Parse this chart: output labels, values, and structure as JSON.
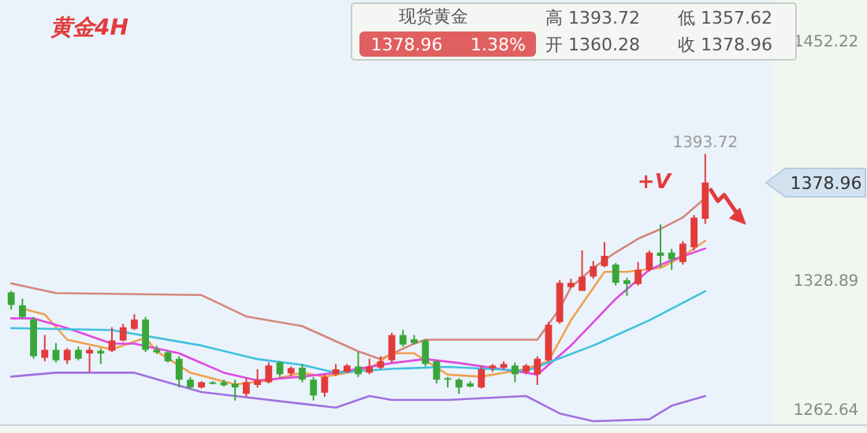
{
  "chart_data": {
    "type": "candlestick",
    "title": "黄金4H",
    "categories": [
      null,
      null,
      null,
      null,
      null,
      null,
      null,
      null,
      null,
      null,
      null,
      null,
      null,
      null,
      null,
      null,
      null,
      null,
      null,
      null,
      null,
      null,
      null,
      null,
      null,
      null,
      null,
      null,
      null,
      null,
      null,
      null,
      null,
      null,
      null,
      null,
      null,
      null,
      null,
      null,
      null,
      null,
      null,
      null,
      null,
      null,
      null,
      null,
      null,
      null,
      null,
      null,
      null,
      null,
      null,
      null,
      null,
      null,
      null,
      null,
      null,
      null,
      null
    ],
    "ohlc": [
      [
        1322.4,
        1323.2,
        1313.5,
        1315.9
      ],
      [
        1315.7,
        1319.2,
        1308.9,
        1309.7
      ],
      [
        1308.4,
        1309.7,
        1288.2,
        1289.5
      ],
      [
        1288.7,
        1300.4,
        1286.9,
        1292.8
      ],
      [
        1292.8,
        1296.3,
        1286.3,
        1287.4
      ],
      [
        1287.4,
        1293.6,
        1285.5,
        1292.8
      ],
      [
        1292.8,
        1294.4,
        1287.4,
        1288.2
      ],
      [
        1290.9,
        1294.4,
        1281.4,
        1292.8
      ],
      [
        1292.3,
        1293.6,
        1285.5,
        1290.9
      ],
      [
        1292.3,
        1304.4,
        1291.7,
        1297.6
      ],
      [
        1297.6,
        1306.2,
        1297.1,
        1304.4
      ],
      [
        1303.6,
        1311.1,
        1303.0,
        1308.4
      ],
      [
        1308.4,
        1309.7,
        1291.7,
        1292.8
      ],
      [
        1292.8,
        1294.9,
        1290.7,
        1291.5
      ],
      [
        1291.5,
        1292.3,
        1286.3,
        1286.9
      ],
      [
        1288.2,
        1289.5,
        1273.4,
        1277.4
      ],
      [
        1277.4,
        1278.8,
        1272.9,
        1273.4
      ],
      [
        1273.4,
        1276.6,
        1272.9,
        1276.1
      ],
      [
        1276.1,
        1276.6,
        1275.0,
        1275.3
      ],
      [
        1276.1,
        1277.4,
        1273.9,
        1274.5
      ],
      [
        1275.3,
        1277.4,
        1266.7,
        1273.4
      ],
      [
        1270.1,
        1278.2,
        1268.5,
        1276.1
      ],
      [
        1274.7,
        1282.8,
        1273.4,
        1277.4
      ],
      [
        1276.1,
        1286.3,
        1275.5,
        1284.7
      ],
      [
        1286.3,
        1286.9,
        1278.8,
        1280.2
      ],
      [
        1280.6,
        1284.2,
        1279.3,
        1283.4
      ],
      [
        1283.6,
        1285.5,
        1276.1,
        1277.4
      ],
      [
        1277.4,
        1278.8,
        1266.7,
        1269.3
      ],
      [
        1270.7,
        1280.2,
        1268.5,
        1278.8
      ],
      [
        1280.2,
        1285.5,
        1279.3,
        1282.8
      ],
      [
        1281.4,
        1285.5,
        1281.0,
        1284.7
      ],
      [
        1284.2,
        1291.7,
        1278.8,
        1280.2
      ],
      [
        1281.0,
        1288.2,
        1280.2,
        1284.2
      ],
      [
        1283.6,
        1289.5,
        1282.8,
        1286.9
      ],
      [
        1287.4,
        1301.6,
        1286.3,
        1300.4
      ],
      [
        1300.4,
        1303.0,
        1294.4,
        1295.5
      ],
      [
        1298.2,
        1300.4,
        1295.5,
        1296.3
      ],
      [
        1297.6,
        1298.2,
        1284.2,
        1285.5
      ],
      [
        1286.9,
        1287.4,
        1275.5,
        1277.4
      ],
      [
        1278.2,
        1278.8,
        1273.4,
        1277.4
      ],
      [
        1277.4,
        1278.2,
        1270.1,
        1273.4
      ],
      [
        1275.5,
        1276.6,
        1273.4,
        1273.9
      ],
      [
        1273.4,
        1284.7,
        1272.9,
        1282.8
      ],
      [
        1283.4,
        1285.5,
        1281.4,
        1284.7
      ],
      [
        1283.6,
        1286.9,
        1282.8,
        1285.5
      ],
      [
        1284.7,
        1286.3,
        1276.1,
        1280.2
      ],
      [
        1281.4,
        1285.5,
        1280.2,
        1284.7
      ],
      [
        1280.2,
        1289.5,
        1274.7,
        1288.2
      ],
      [
        1287.4,
        1307.1,
        1286.9,
        1305.7
      ],
      [
        1307.1,
        1328.6,
        1306.2,
        1327.3
      ],
      [
        1325.1,
        1329.4,
        1324.6,
        1327.3
      ],
      [
        1323.2,
        1344.0,
        1323.2,
        1330.5
      ],
      [
        1330.5,
        1338.6,
        1329.4,
        1335.9
      ],
      [
        1335.9,
        1348.3,
        1335.3,
        1341.2
      ],
      [
        1336.7,
        1337.5,
        1325.9,
        1327.3
      ],
      [
        1328.6,
        1329.9,
        1320.6,
        1326.7
      ],
      [
        1326.7,
        1338.0,
        1325.9,
        1334.0
      ],
      [
        1334.0,
        1344.0,
        1333.1,
        1342.9
      ],
      [
        1342.9,
        1357.4,
        1335.3,
        1341.2
      ],
      [
        1342.9,
        1344.8,
        1334.0,
        1339.4
      ],
      [
        1338.0,
        1348.8,
        1336.7,
        1347.5
      ],
      [
        1345.6,
        1362.2,
        1344.0,
        1360.9
      ],
      [
        1360.28,
        1393.72,
        1357.62,
        1378.96
      ]
    ],
    "series": [
      {
        "type": "line",
        "color": "#d4877a",
        "values": [
          1327,
          null,
          null,
          null,
          1322,
          null,
          null,
          null,
          null,
          null,
          null,
          null,
          null,
          null,
          null,
          null,
          null,
          1321,
          null,
          null,
          null,
          1310,
          null,
          null,
          null,
          null,
          1305,
          null,
          null,
          null,
          null,
          1292,
          null,
          1288,
          null,
          null,
          1296,
          1298,
          null,
          null,
          null,
          null,
          null,
          null,
          null,
          null,
          null,
          1298,
          null,
          1314,
          1325,
          null,
          1335,
          null,
          1343,
          null,
          1350,
          null,
          1355,
          null,
          1361,
          null,
          1371
        ]
      },
      {
        "type": "line",
        "color": "#f0a050",
        "values": [
          null,
          1314,
          null,
          1311,
          null,
          1298,
          null,
          null,
          null,
          1293,
          null,
          null,
          1299,
          1292,
          null,
          null,
          1281,
          null,
          null,
          null,
          1275,
          null,
          null,
          1277,
          null,
          null,
          1281,
          null,
          1279,
          null,
          null,
          null,
          1283,
          null,
          1291,
          null,
          1291,
          null,
          null,
          1280,
          null,
          null,
          1279,
          null,
          null,
          null,
          1283,
          null,
          1287,
          null,
          1308,
          null,
          null,
          1333,
          null,
          1333,
          null,
          null,
          1335,
          null,
          1341,
          null,
          1349
        ]
      },
      {
        "type": "line",
        "color": "#e048e0",
        "values": [
          1309,
          null,
          1309,
          null,
          null,
          1304,
          null,
          null,
          null,
          1296,
          null,
          1296,
          null,
          null,
          null,
          1291,
          null,
          null,
          null,
          1281,
          null,
          null,
          1277,
          null,
          null,
          null,
          1279,
          null,
          null,
          1281,
          null,
          null,
          null,
          null,
          1286,
          null,
          null,
          1288,
          null,
          null,
          1286,
          null,
          null,
          null,
          null,
          null,
          1281,
          1280,
          null,
          null,
          1295,
          null,
          null,
          null,
          1319,
          null,
          null,
          1334,
          null,
          1339,
          null,
          null,
          1345
        ]
      },
      {
        "type": "line",
        "color": "#40c0e0",
        "values": [
          1304,
          null,
          null,
          null,
          null,
          null,
          null,
          null,
          null,
          1303,
          null,
          null,
          null,
          null,
          null,
          null,
          null,
          1295,
          null,
          null,
          null,
          null,
          1288,
          null,
          null,
          null,
          1285,
          null,
          null,
          1281,
          null,
          null,
          null,
          null,
          1283,
          null,
          null,
          null,
          null,
          1284,
          null,
          null,
          null,
          null,
          null,
          null,
          1282,
          1284,
          null,
          null,
          null,
          null,
          1295,
          null,
          null,
          null,
          null,
          1308,
          null,
          null,
          null,
          null,
          1323
        ]
      },
      {
        "type": "line",
        "color": "#a070e0",
        "values": [
          1279,
          null,
          null,
          null,
          1281,
          null,
          null,
          null,
          null,
          null,
          null,
          1281,
          null,
          null,
          null,
          null,
          null,
          1271,
          null,
          null,
          null,
          null,
          null,
          null,
          null,
          null,
          1265,
          null,
          null,
          1263,
          null,
          null,
          1269,
          null,
          1267,
          null,
          null,
          null,
          null,
          1267,
          null,
          null,
          null,
          null,
          null,
          null,
          1269,
          null,
          null,
          1260,
          null,
          null,
          1256,
          null,
          null,
          null,
          null,
          1257,
          null,
          1264,
          null,
          null,
          1269
        ]
      }
    ],
    "ylim": [
      1254,
      1473
    ],
    "yticks": [
      1452.22,
      1378.96,
      1328.89,
      1262.64
    ],
    "annotations": [
      {
        "text": "1393.72",
        "y": 1393.72
      },
      "+V",
      "现货黄金",
      "1378.96",
      "1.38%",
      "高 1393.72",
      "低 1357.62",
      "开 1360.28",
      "收 1378.96"
    ]
  }
}
